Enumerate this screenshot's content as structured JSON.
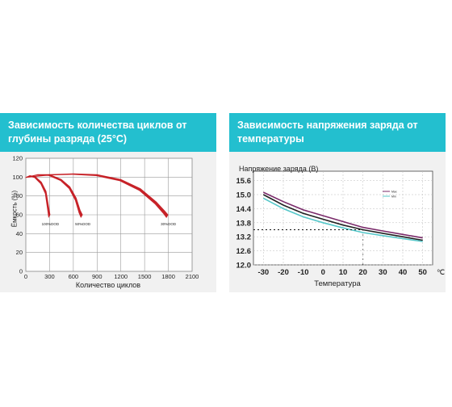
{
  "panels": {
    "left": {
      "header_line1": "Зависимость количества циклов от",
      "header_line2": "глубины разряда (25°С)"
    },
    "right": {
      "header_line1": "Зависимость напряжения заряда от",
      "header_line2": "температуры"
    }
  },
  "chart_data": [
    {
      "type": "area",
      "xlabel": "Количество циклов",
      "ylabel": "Ёмкость (%)",
      "xlim": [
        0,
        2100
      ],
      "ylim": [
        0,
        120
      ],
      "x_ticks": [
        "0",
        "300",
        "600",
        "900",
        "1200",
        "1500",
        "1800",
        "2100"
      ],
      "y_ticks": [
        "0",
        "20",
        "40",
        "60",
        "80",
        "100",
        "120"
      ],
      "grid": true,
      "series": [
        {
          "name": "100%DOD",
          "points": [
            [
              0,
              100
            ],
            [
              50,
              102
            ],
            [
              120,
              101
            ],
            [
              200,
              95
            ],
            [
              260,
              85
            ],
            [
              290,
              70
            ],
            [
              310,
              60
            ]
          ]
        },
        {
          "name": "50%DOD",
          "points": [
            [
              0,
              100
            ],
            [
              150,
              103
            ],
            [
              300,
              103
            ],
            [
              450,
              98
            ],
            [
              560,
              90
            ],
            [
              640,
              78
            ],
            [
              690,
              65
            ],
            [
              720,
              60
            ]
          ]
        },
        {
          "name": "30%DOD",
          "points": [
            [
              0,
              100
            ],
            [
              300,
              103
            ],
            [
              600,
              104
            ],
            [
              900,
              103
            ],
            [
              1200,
              98
            ],
            [
              1450,
              88
            ],
            [
              1650,
              74
            ],
            [
              1760,
              64
            ],
            [
              1800,
              60
            ]
          ]
        }
      ],
      "color": "#c4161c"
    },
    {
      "type": "line",
      "title": "Напряжение заряда (В)",
      "xlabel": "Температура",
      "ylabel": "",
      "xlim": [
        -35,
        55
      ],
      "ylim": [
        12.0,
        16.0
      ],
      "x_ticks": [
        "-30",
        "-20",
        "-10",
        "0",
        "10",
        "20",
        "30",
        "40",
        "50"
      ],
      "y_ticks": [
        "12.0",
        "12.6",
        "13.2",
        "13.8",
        "14.4",
        "15.0",
        "15.6"
      ],
      "x_unit": "℃",
      "grid": true,
      "legend": "top-right",
      "series": [
        {
          "name": "Max",
          "color": "#7a2a6a",
          "points": [
            [
              -30,
              15.1
            ],
            [
              -20,
              14.7
            ],
            [
              -10,
              14.35
            ],
            [
              0,
              14.1
            ],
            [
              10,
              13.85
            ],
            [
              20,
              13.6
            ],
            [
              30,
              13.45
            ],
            [
              40,
              13.3
            ],
            [
              50,
              13.15
            ]
          ]
        },
        {
          "name": "",
          "color": "#222222",
          "points": [
            [
              -30,
              15.0
            ],
            [
              -20,
              14.55
            ],
            [
              -10,
              14.2
            ],
            [
              0,
              13.95
            ],
            [
              10,
              13.7
            ],
            [
              20,
              13.5
            ],
            [
              30,
              13.35
            ],
            [
              40,
              13.2
            ],
            [
              50,
              13.05
            ]
          ]
        },
        {
          "name": "Min",
          "color": "#55c7c9",
          "points": [
            [
              -30,
              14.85
            ],
            [
              -20,
              14.4
            ],
            [
              -10,
              14.05
            ],
            [
              0,
              13.8
            ],
            [
              10,
              13.58
            ],
            [
              20,
              13.38
            ],
            [
              30,
              13.25
            ],
            [
              40,
              13.12
            ],
            [
              50,
              13.0
            ]
          ]
        }
      ],
      "reference": {
        "x": 20,
        "y": 13.5
      }
    }
  ]
}
